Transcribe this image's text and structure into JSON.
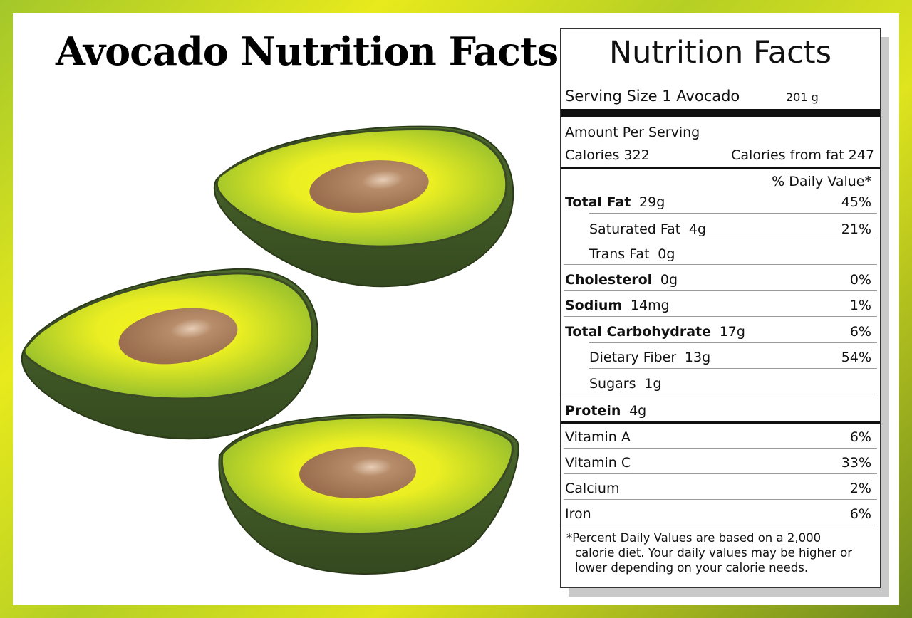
{
  "title": "Avocado Nutrition Facts",
  "label": {
    "heading": "Nutrition Facts",
    "serving_size": "Serving Size 1 Avocado",
    "serving_weight": "201 g",
    "amount_per_serving": "Amount Per Serving",
    "calories": "Calories 322",
    "calories_from_fat": "Calories from fat 247",
    "daily_value_header": "% Daily Value*",
    "nutrients": [
      {
        "name": "Total Fat",
        "amount": "29g",
        "dv": "45%"
      },
      {
        "name": "Saturated Fat",
        "amount": "4g",
        "dv": "21%"
      },
      {
        "name": "Trans Fat",
        "amount": "0g",
        "dv": ""
      },
      {
        "name": "Cholesterol",
        "amount": "0g",
        "dv": "0%"
      },
      {
        "name": "Sodium",
        "amount": "14mg",
        "dv": "1%"
      },
      {
        "name": "Total Carbohydrate",
        "amount": "17g",
        "dv": "6%"
      },
      {
        "name": "Dietary Fiber",
        "amount": "13g",
        "dv": "54%"
      },
      {
        "name": "Sugars",
        "amount": "1g",
        "dv": ""
      },
      {
        "name": "Protein",
        "amount": "4g",
        "dv": ""
      }
    ],
    "vitamins": [
      {
        "name": "Vitamin A",
        "dv": "6%"
      },
      {
        "name": "Vitamin C",
        "dv": "33%"
      },
      {
        "name": "Calcium",
        "dv": "2%"
      },
      {
        "name": "Iron",
        "dv": "6%"
      }
    ],
    "footnote": [
      "*Percent Daily Values are based on a 2,000",
      "calorie diet. Your daily values may be higher or",
      "lower depending on your calorie needs."
    ]
  },
  "colors": {
    "avocado_skin": "#3f5a28",
    "avocado_flesh_center": "#f4f21c",
    "avocado_flesh_edge": "#9cc42a",
    "pit": "#a47858"
  }
}
